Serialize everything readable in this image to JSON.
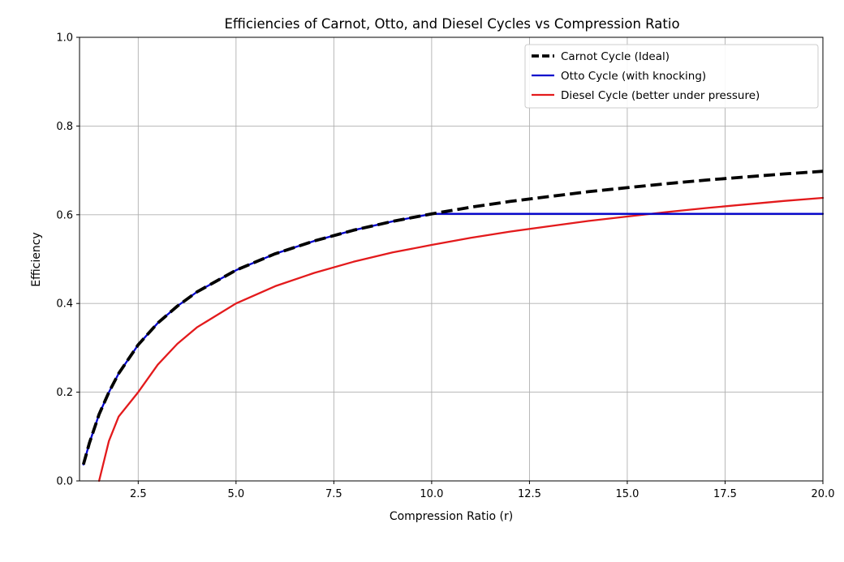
{
  "chart_data": {
    "type": "line",
    "title": "Efficiencies of Carnot, Otto, and Diesel Cycles vs Compression Ratio",
    "xlabel": "Compression Ratio (r)",
    "ylabel": "Efficiency",
    "xlim": [
      1.0,
      20.0
    ],
    "ylim": [
      0.0,
      1.0
    ],
    "grid": true,
    "legend_position": "top-right",
    "x_ticks": [
      2.5,
      5.0,
      7.5,
      10.0,
      12.5,
      15.0,
      17.5,
      20.0
    ],
    "x_tick_labels": [
      "2.5",
      "5.0",
      "7.5",
      "10.0",
      "12.5",
      "15.0",
      "17.5",
      "20.0"
    ],
    "y_ticks": [
      0.0,
      0.2,
      0.4,
      0.6,
      0.8,
      1.0
    ],
    "y_tick_labels": [
      "0.0",
      "0.2",
      "0.4",
      "0.6",
      "0.8",
      "1.0"
    ],
    "x": [
      1.1,
      1.25,
      1.5,
      1.75,
      2.0,
      2.5,
      3.0,
      3.5,
      4.0,
      5.0,
      6.0,
      7.0,
      8.0,
      9.0,
      10.0,
      11.0,
      12.0,
      13.0,
      14.0,
      15.0,
      16.0,
      17.0,
      18.0,
      19.0,
      20.0
    ],
    "series": [
      {
        "name": "Carnot Cycle (Ideal)",
        "color": "#000000",
        "style": "dashed",
        "values": [
          0.037,
          0.085,
          0.15,
          0.2,
          0.242,
          0.307,
          0.356,
          0.394,
          0.426,
          0.475,
          0.512,
          0.541,
          0.565,
          0.585,
          0.602,
          0.617,
          0.63,
          0.641,
          0.652,
          0.661,
          0.67,
          0.678,
          0.685,
          0.692,
          0.698
        ]
      },
      {
        "name": "Otto Cycle (with knocking)",
        "color": "#0000cc",
        "style": "solid",
        "values": [
          0.037,
          0.085,
          0.15,
          0.2,
          0.242,
          0.307,
          0.356,
          0.394,
          0.426,
          0.475,
          0.512,
          0.541,
          0.565,
          0.585,
          0.602,
          0.602,
          0.602,
          0.602,
          0.602,
          0.602,
          0.602,
          0.602,
          0.602,
          0.602,
          0.602
        ]
      },
      {
        "name": "Diesel Cycle (better under pressure)",
        "color": "#e31a1c",
        "style": "solid",
        "values": [
          null,
          null,
          0.0,
          0.09,
          0.145,
          0.2,
          0.262,
          0.309,
          0.346,
          0.4,
          0.439,
          0.469,
          0.494,
          0.515,
          0.532,
          0.548,
          0.562,
          0.574,
          0.586,
          0.596,
          0.606,
          0.615,
          0.623,
          0.631,
          0.638
        ]
      }
    ]
  }
}
